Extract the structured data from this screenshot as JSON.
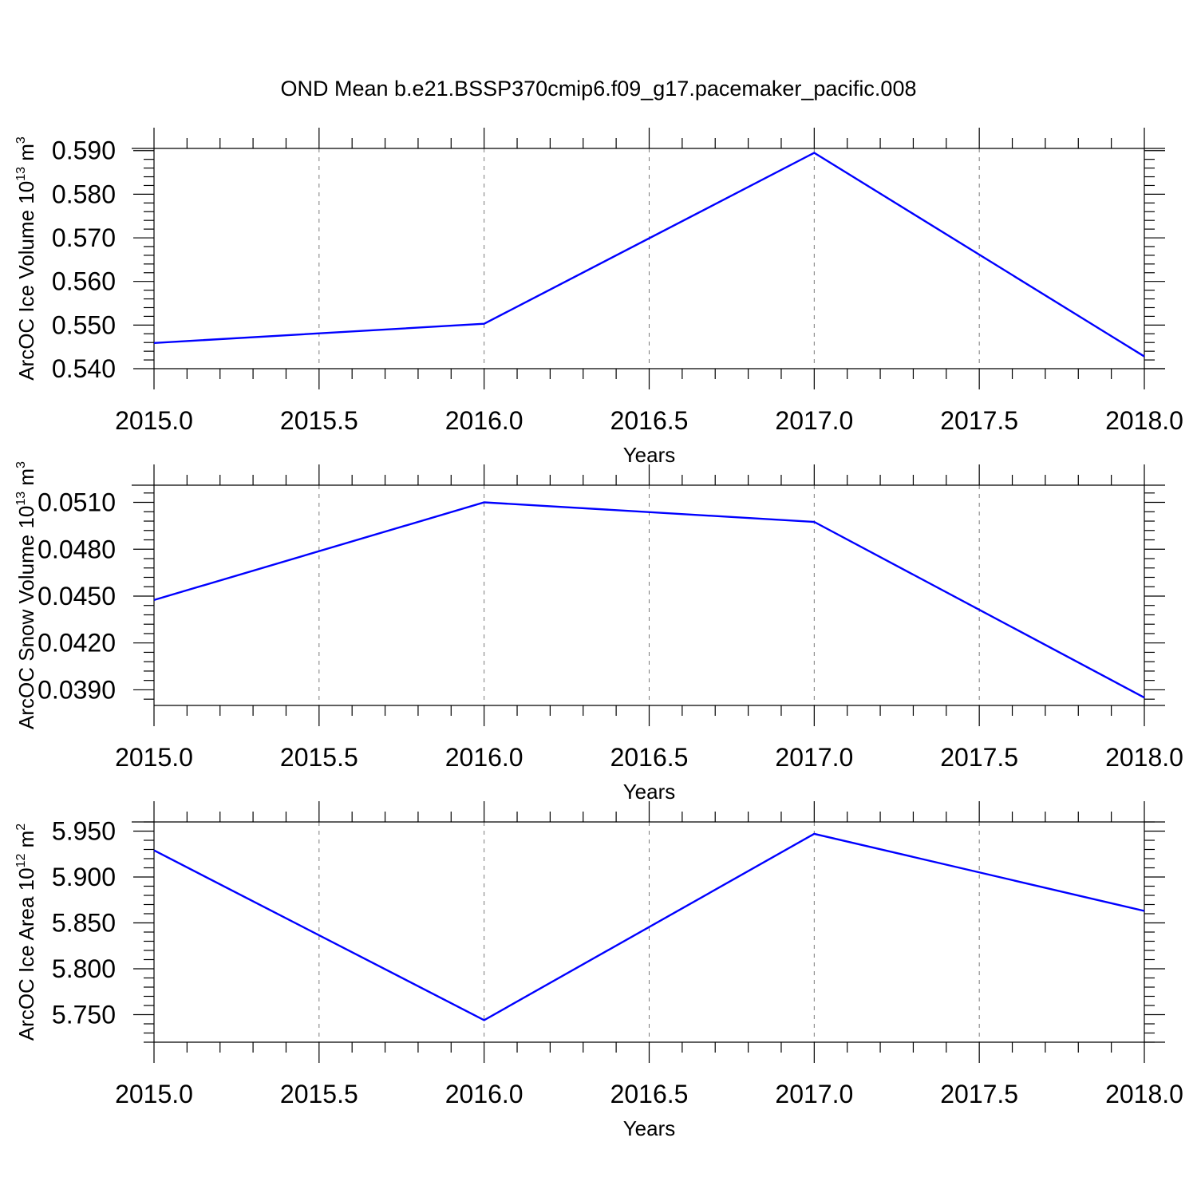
{
  "title": "OND Mean b.e21.BSSP370cmip6.f09_g17.pacemaker_pacific.008",
  "colors": {
    "series": "#0000ff",
    "grid": "#7a7a7a",
    "axes": "#000000"
  },
  "chart_data": [
    {
      "type": "line",
      "xlabel": "Years",
      "ylabel_parts": {
        "base": "ArcOC Ice Volume 10",
        "exp": "13",
        "mid": " m",
        "unit_exp": "3"
      },
      "xlim": [
        2015.0,
        2018.0
      ],
      "ylim": [
        0.54,
        0.5905
      ],
      "xticks": [
        2015.0,
        2015.5,
        2016.0,
        2016.5,
        2017.0,
        2017.5,
        2018.0
      ],
      "xtick_labels": [
        "2015.0",
        "2015.5",
        "2016.0",
        "2016.5",
        "2017.0",
        "2017.5",
        "2018.0"
      ],
      "yticks": [
        0.54,
        0.55,
        0.56,
        0.57,
        0.58,
        0.59
      ],
      "ytick_labels": [
        "0.540",
        "0.550",
        "0.560",
        "0.570",
        "0.580",
        "0.590"
      ],
      "x_minor_step": 0.1,
      "y_minor_step": 0.002,
      "x": [
        2015.0,
        2016.0,
        2017.0,
        2018.0
      ],
      "y": [
        0.5459,
        0.5503,
        0.5895,
        0.5428
      ],
      "grid": "vertical dashed at major x ticks"
    },
    {
      "type": "line",
      "xlabel": "Years",
      "ylabel_parts": {
        "base": "ArcOC Snow Volume 10",
        "exp": "13",
        "mid": " m",
        "unit_exp": "3"
      },
      "xlim": [
        2015.0,
        2018.0
      ],
      "ylim": [
        0.038,
        0.0521
      ],
      "xticks": [
        2015.0,
        2015.5,
        2016.0,
        2016.5,
        2017.0,
        2017.5,
        2018.0
      ],
      "xtick_labels": [
        "2015.0",
        "2015.5",
        "2016.0",
        "2016.5",
        "2017.0",
        "2017.5",
        "2018.0"
      ],
      "yticks": [
        0.039,
        0.042,
        0.045,
        0.048,
        0.051
      ],
      "ytick_labels": [
        "0.0390",
        "0.0420",
        "0.0450",
        "0.0480",
        "0.0510"
      ],
      "x_minor_step": 0.1,
      "y_minor_step": 0.0006,
      "x": [
        2015.0,
        2016.0,
        2017.0,
        2018.0
      ],
      "y": [
        0.04475,
        0.051,
        0.04975,
        0.0385
      ],
      "grid": "vertical dashed at major x ticks"
    },
    {
      "type": "line",
      "xlabel": "Years",
      "ylabel_parts": {
        "base": "ArcOC Ice Area 10",
        "exp": "12",
        "mid": " m",
        "unit_exp": "2"
      },
      "xlim": [
        2015.0,
        2018.0
      ],
      "ylim": [
        5.72,
        5.96
      ],
      "xticks": [
        2015.0,
        2015.5,
        2016.0,
        2016.5,
        2017.0,
        2017.5,
        2018.0
      ],
      "xtick_labels": [
        "2015.0",
        "2015.5",
        "2016.0",
        "2016.5",
        "2017.0",
        "2017.5",
        "2018.0"
      ],
      "yticks": [
        5.75,
        5.8,
        5.85,
        5.9,
        5.95
      ],
      "ytick_labels": [
        "5.750",
        "5.800",
        "5.850",
        "5.900",
        "5.950"
      ],
      "x_minor_step": 0.1,
      "y_minor_step": 0.01,
      "x": [
        2015.0,
        2016.0,
        2017.0,
        2018.0
      ],
      "y": [
        5.929,
        5.744,
        5.947,
        5.863
      ],
      "grid": "vertical dashed at major x ticks"
    }
  ]
}
